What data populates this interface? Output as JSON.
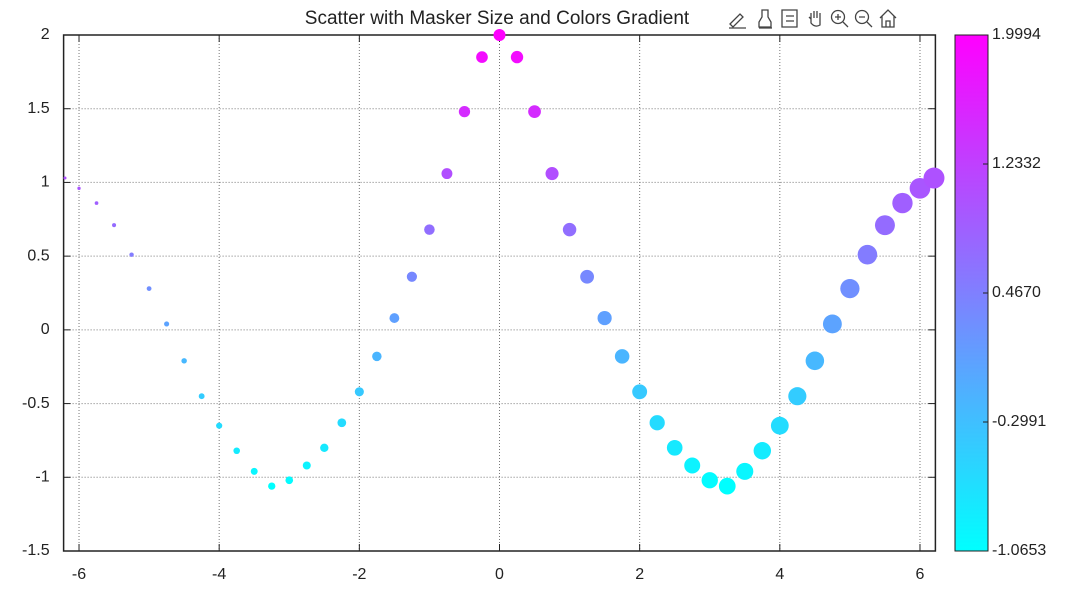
{
  "chart_data": {
    "type": "scatter",
    "title": "Scatter with Masker Size and Colors Gradient",
    "x": [
      -6.2,
      -6,
      -5.75,
      -5.5,
      -5.25,
      -5,
      -4.75,
      -4.5,
      -4.25,
      -4,
      -3.75,
      -3.5,
      -3.25,
      -3,
      -2.75,
      -2.5,
      -2.25,
      -2,
      -1.75,
      -1.5,
      -1.25,
      -1,
      -0.75,
      -0.5,
      -0.25,
      0,
      0.25,
      0.5,
      0.75,
      1,
      1.25,
      1.5,
      1.75,
      2,
      2.25,
      2.5,
      2.75,
      3,
      3.25,
      3.5,
      3.75,
      4,
      4.25,
      4.5,
      4.75,
      5,
      5.25,
      5.5,
      5.75,
      6,
      6.2
    ],
    "values": [
      1.03,
      0.96,
      0.86,
      0.71,
      0.51,
      0.28,
      0.04,
      -0.21,
      -0.45,
      -0.65,
      -0.82,
      -0.96,
      -1.06,
      -1.02,
      -0.92,
      -0.8,
      -0.63,
      -0.42,
      -0.18,
      0.08,
      0.36,
      0.68,
      1.06,
      1.48,
      1.85,
      2,
      1.85,
      1.48,
      1.06,
      0.68,
      0.36,
      0.08,
      -0.18,
      -0.42,
      -0.63,
      -0.8,
      -0.92,
      -1.02,
      -1.06,
      -0.96,
      -0.82,
      -0.65,
      -0.45,
      -0.21,
      0.04,
      0.28,
      0.51,
      0.71,
      0.86,
      0.96,
      1.03
    ],
    "xlim": [
      -6.22,
      6.22
    ],
    "xticks": [
      -6,
      -4,
      -2,
      0,
      2,
      4,
      6
    ],
    "ylim": [
      -1.5,
      2
    ],
    "yticks": [
      -1.5,
      -1,
      -0.5,
      0,
      0.5,
      1,
      1.5,
      2
    ],
    "grid": true,
    "colormap": [
      "#00ffff",
      "#ff00ff"
    ],
    "clim": [
      -1.0653,
      1.9994
    ],
    "cticks": [
      -1.0653,
      -0.2991,
      {
        "value": 0.467,
        "label": "0.4670"
      },
      1.2332,
      1.9994
    ]
  }
}
